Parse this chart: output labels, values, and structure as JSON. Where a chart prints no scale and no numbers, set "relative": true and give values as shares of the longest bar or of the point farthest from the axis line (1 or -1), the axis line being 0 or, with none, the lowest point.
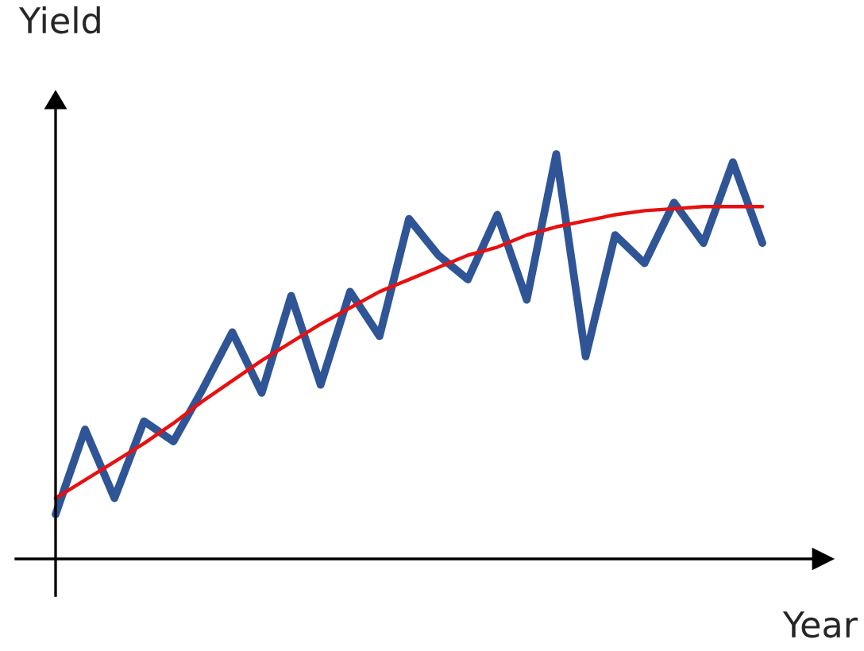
{
  "chart_data": {
    "type": "line",
    "relative": true,
    "xlabel": "Year",
    "ylabel": "Yield",
    "legend": false,
    "marker": "none",
    "line_style": "solid",
    "categories": [
      null,
      null,
      null,
      null,
      null,
      null,
      null,
      null,
      null,
      null,
      null,
      null,
      null,
      null,
      null,
      null,
      null,
      null,
      null,
      null,
      null,
      null,
      null,
      null,
      null
    ],
    "series": [
      {
        "color": "#2f5597",
        "values": [
          0.11,
          0.32,
          0.15,
          0.34,
          0.29,
          0.42,
          0.56,
          0.41,
          0.65,
          0.43,
          0.66,
          0.55,
          0.84,
          0.75,
          0.69,
          0.85,
          0.64,
          1,
          0.5,
          0.8,
          0.73,
          0.88,
          0.78,
          0.98,
          0.78
        ]
      },
      {
        "color": "#e81010",
        "values": [
          0.15,
          0.195,
          0.24,
          0.285,
          0.335,
          0.39,
          0.44,
          0.49,
          0.535,
          0.58,
          0.62,
          0.66,
          0.69,
          0.72,
          0.75,
          0.77,
          0.8,
          0.82,
          0.835,
          0.85,
          0.86,
          0.865,
          0.87,
          0.87,
          0.87
        ]
      }
    ]
  }
}
